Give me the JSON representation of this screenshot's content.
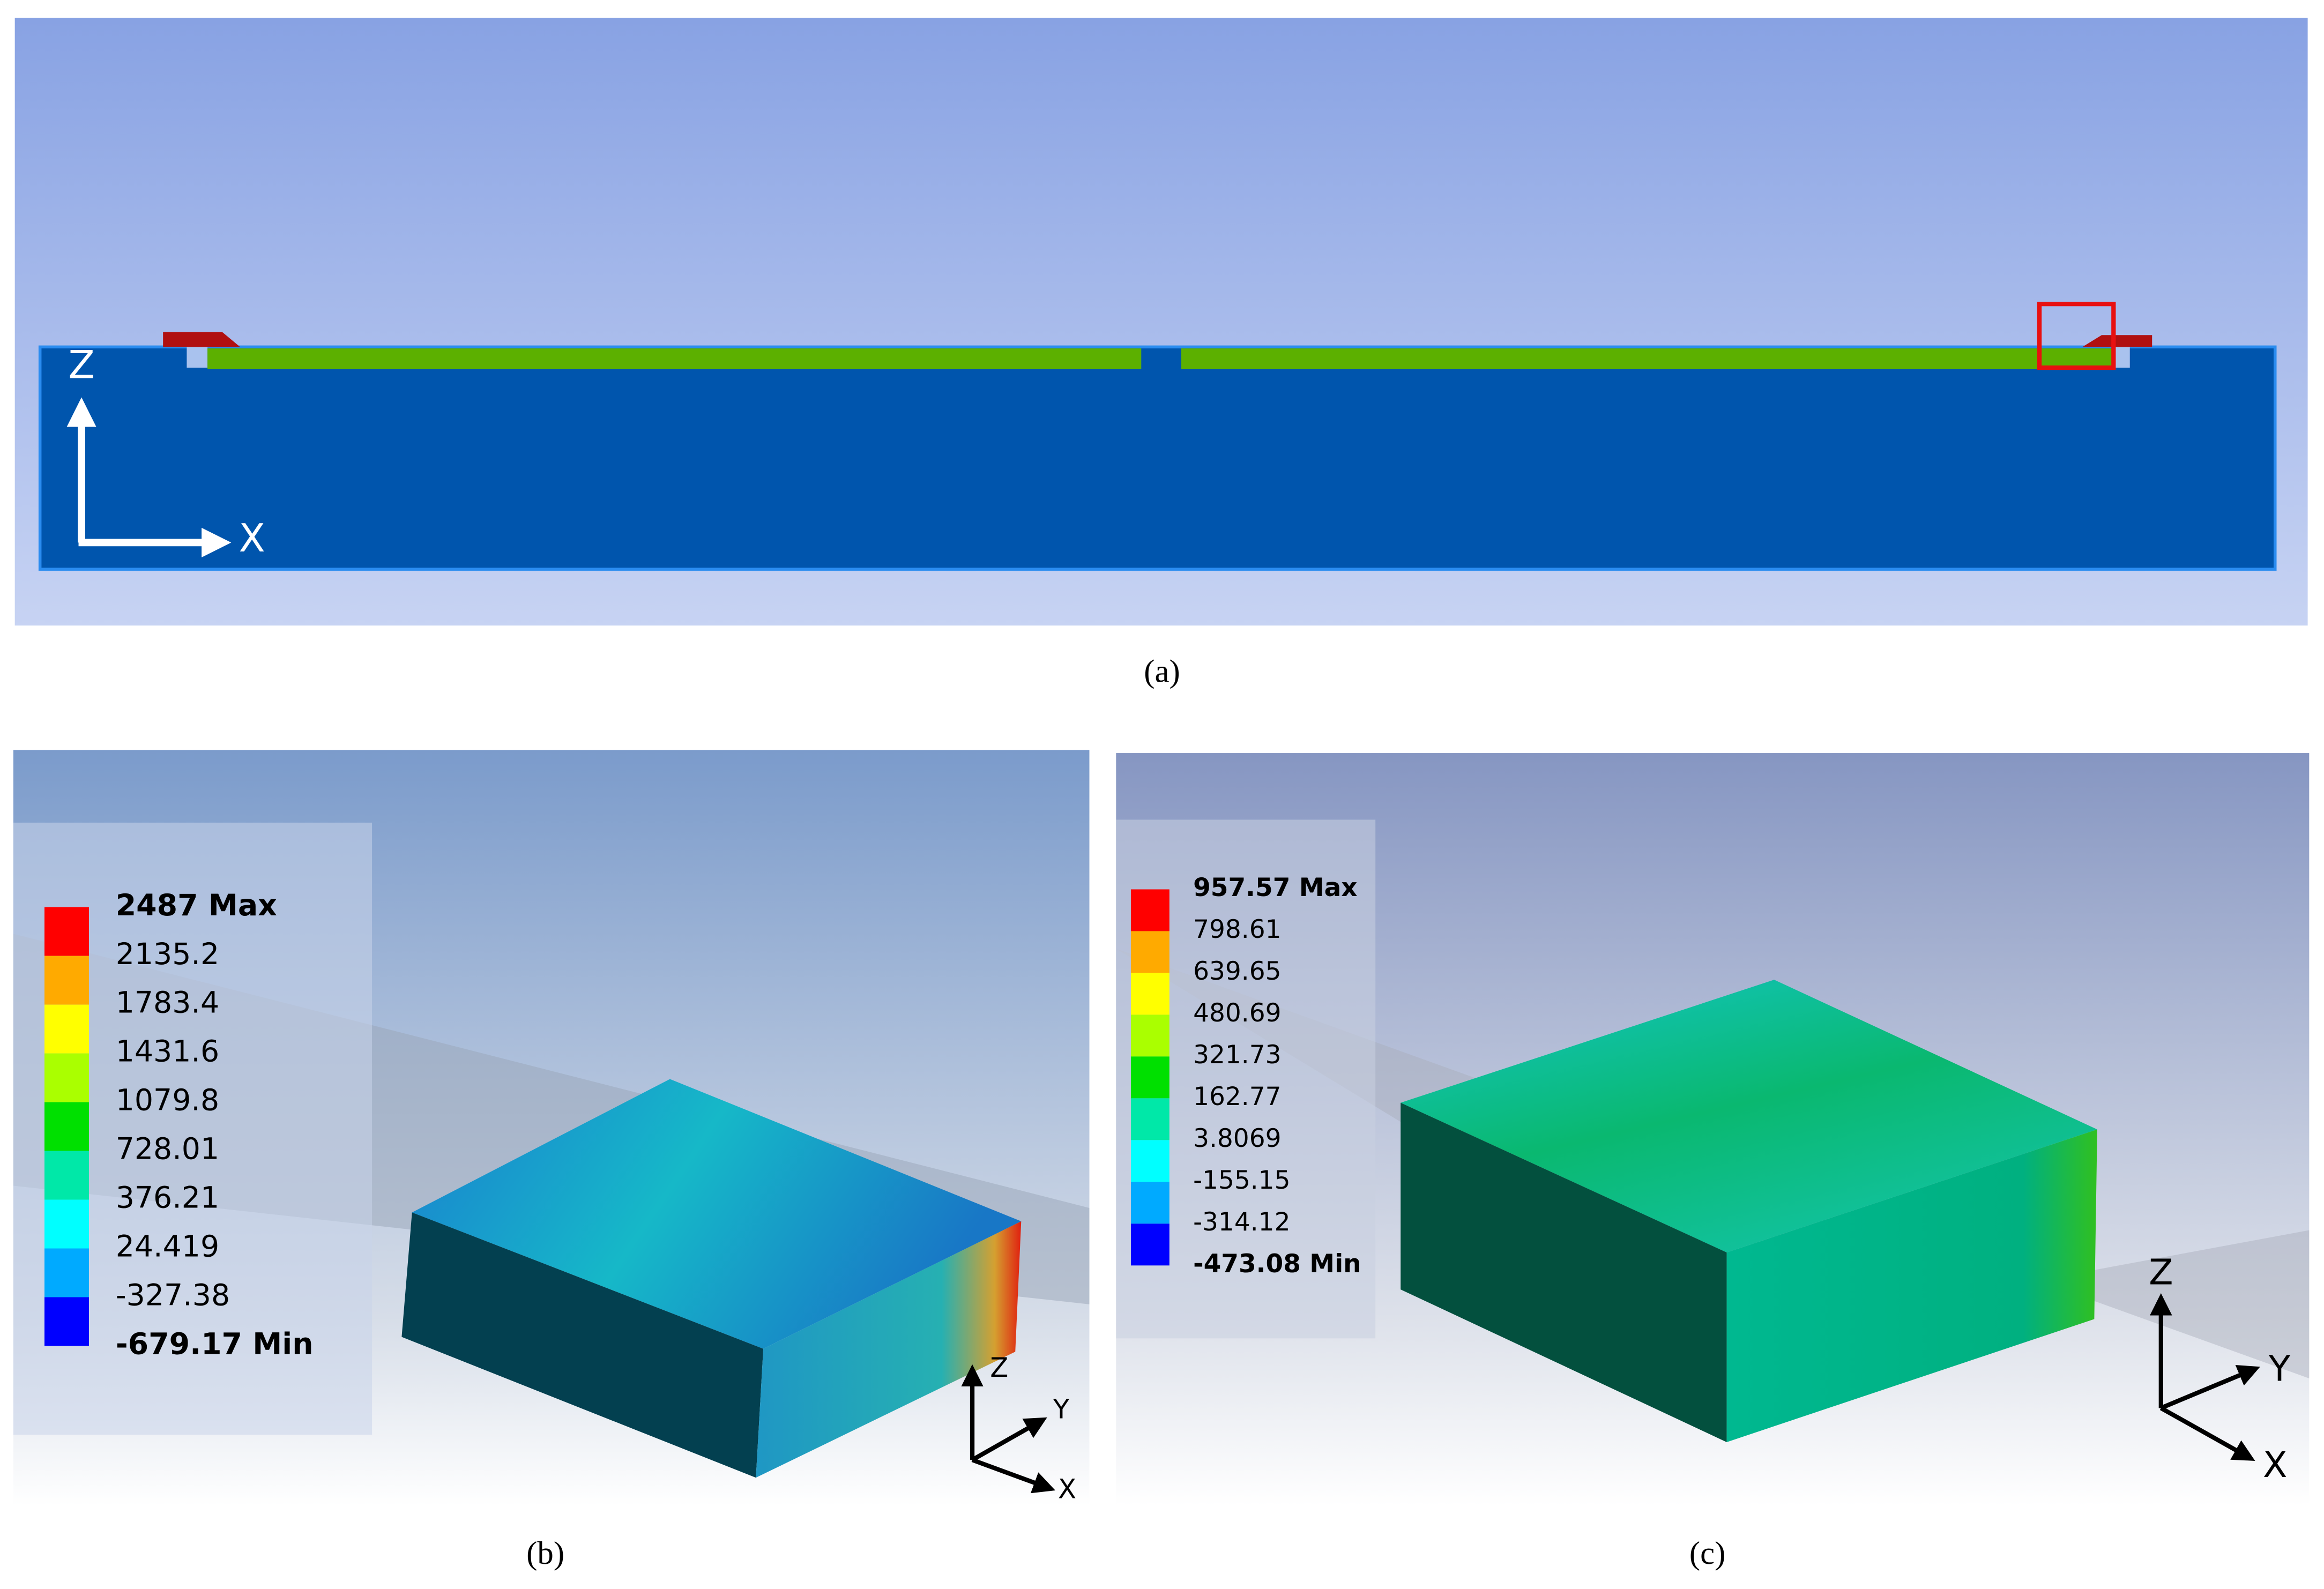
{
  "panels": [
    {
      "label": "(a)",
      "axes": [
        "Z",
        "X"
      ]
    },
    {
      "label": "(b)",
      "axes": [
        "Z",
        "Y",
        "X"
      ],
      "legend": {
        "max": "2487 Max",
        "levels": [
          "2135.2",
          "1783.4",
          "1431.6",
          "1079.8",
          "728.01",
          "376.21",
          "24.419",
          "-327.38"
        ],
        "min": "-679.17 Min"
      }
    },
    {
      "label": "(c)",
      "axes": [
        "Z",
        "Y",
        "X"
      ],
      "legend": {
        "max": "957.57 Max",
        "levels": [
          "798.61",
          "639.65",
          "480.69",
          "321.73",
          "162.77",
          "3.8069",
          "-155.15",
          "-314.12"
        ],
        "min": "-473.08 Min"
      }
    }
  ]
}
